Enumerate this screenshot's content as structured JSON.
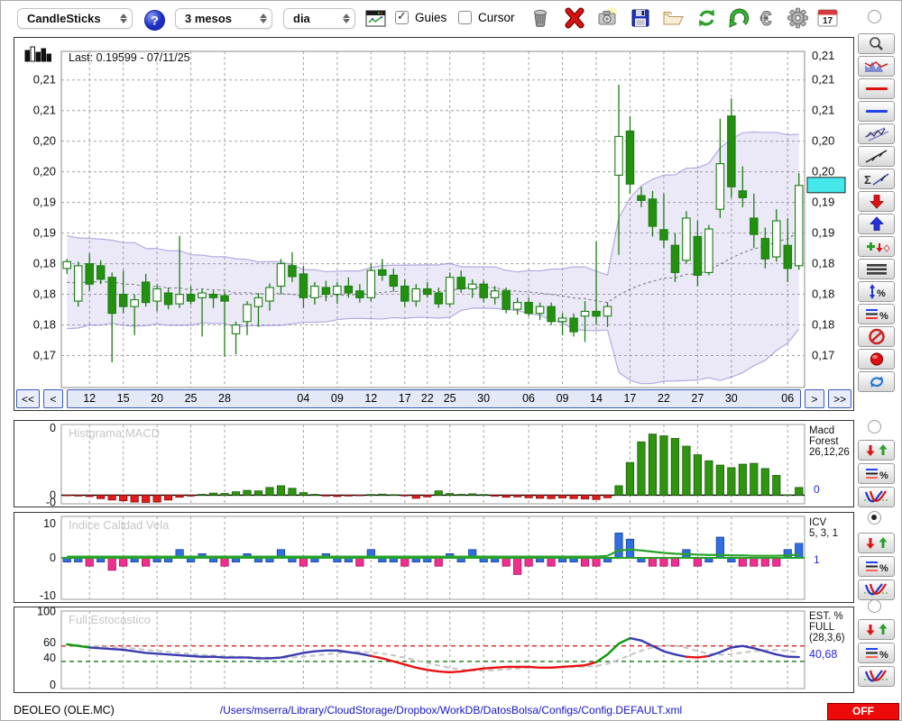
{
  "toolbar": {
    "chart_type": "CandleSticks",
    "period": "3 mesos",
    "interval": "dia",
    "guies_label": "Guies",
    "guies_checked": true,
    "cursor_label": "Cursor",
    "cursor_checked": false,
    "help_glyph": "?",
    "euro_glyph": "€",
    "calendar_day": "17",
    "icons": [
      "chart-window-icon",
      "trash-icon",
      "delete-x-icon",
      "camera-icon",
      "save-floppy-icon",
      "open-folder-icon",
      "refresh-icon",
      "undo-icon",
      "euro-icon",
      "gear-icon",
      "calendar-icon"
    ]
  },
  "sidebar": {
    "top_radio": false,
    "macd_radio": false,
    "icv_radio": true,
    "est_radio": false,
    "tools": [
      "zoom",
      "indicator-overlay",
      "red-hline",
      "blue-hline",
      "channel",
      "trendline",
      "sum-trendline",
      "sell-arrow",
      "buy-arrow",
      "add-signal",
      "align-lines",
      "range-percent",
      "levels-percent",
      "disable",
      "record",
      "sync"
    ]
  },
  "main_chart": {
    "last_label": "Last: 0.19599 - 07/11/25",
    "price_badge": "0,20",
    "nav": {
      "first": "<<",
      "prev": "<",
      "next": ">",
      "last": ">>"
    }
  },
  "statusbar": {
    "symbol": "DEOLEO (OLE.MC)",
    "path": "/Users/mserra/Library/CloudStorage/Dropbox/WorkDB/DatosBolsa/Configs/Config.DEFAULT.xml",
    "off_label": "OFF"
  },
  "chart_data": [
    {
      "type": "candlestick",
      "symbol": "DEOLEO (OLE.MC)",
      "last_price": 0.19599,
      "last_date": "07/11/25",
      "ylim": [
        0.1663,
        0.2157
      ],
      "y_ticks": [
        {
          "l": "0,21",
          "v": 0.2115
        },
        {
          "l": "0,21",
          "v": 0.207
        },
        {
          "l": "0,20",
          "v": 0.2025
        },
        {
          "l": "0,20",
          "v": 0.198
        },
        {
          "l": "0,19",
          "v": 0.1935
        },
        {
          "l": "0,19",
          "v": 0.189
        },
        {
          "l": "0,18",
          "v": 0.1845
        },
        {
          "l": "0,18",
          "v": 0.18
        },
        {
          "l": "0,18",
          "v": 0.1755
        },
        {
          "l": "0,17",
          "v": 0.171
        }
      ],
      "right_extra_label": "0,21",
      "x_ticks": [
        {
          "l": "12",
          "i": 2
        },
        {
          "l": "15",
          "i": 5
        },
        {
          "l": "20",
          "i": 8
        },
        {
          "l": "25",
          "i": 11
        },
        {
          "l": "28",
          "i": 14
        },
        {
          "l": "04",
          "i": 21
        },
        {
          "l": "09",
          "i": 24
        },
        {
          "l": "12",
          "i": 27
        },
        {
          "l": "17",
          "i": 30
        },
        {
          "l": "22",
          "i": 32
        },
        {
          "l": "25",
          "i": 34
        },
        {
          "l": "30",
          "i": 37
        },
        {
          "l": "06",
          "i": 41
        },
        {
          "l": "09",
          "i": 44
        },
        {
          "l": "14",
          "i": 47
        },
        {
          "l": "17",
          "i": 50
        },
        {
          "l": "22",
          "i": 53
        },
        {
          "l": "27",
          "i": 56
        },
        {
          "l": "30",
          "i": 59
        },
        {
          "l": "06",
          "i": 64
        }
      ],
      "bollinger": {
        "window": 20,
        "mult": 2
      },
      "warmup_closes": [
        0.181,
        0.1862,
        0.1778,
        0.1835,
        0.1758,
        0.1852,
        0.18,
        0.187,
        0.1782,
        0.184,
        0.1795,
        0.185,
        0.1772,
        0.1828,
        0.179,
        0.1845,
        0.1768,
        0.1832,
        0.1802,
        0.1846
      ],
      "candles": [
        [
          0.1838,
          0.1852,
          0.183,
          0.1848
        ],
        [
          0.179,
          0.1848,
          0.1782,
          0.1842
        ],
        [
          0.1845,
          0.186,
          0.1805,
          0.1815
        ],
        [
          0.1842,
          0.185,
          0.1815,
          0.1822
        ],
        [
          0.1825,
          0.1832,
          0.17,
          0.1772
        ],
        [
          0.18,
          0.1835,
          0.1772,
          0.1782
        ],
        [
          0.1782,
          0.18,
          0.174,
          0.1792
        ],
        [
          0.1818,
          0.183,
          0.1782,
          0.1788
        ],
        [
          0.179,
          0.1815,
          0.1775,
          0.1808
        ],
        [
          0.1802,
          0.181,
          0.1778,
          0.1785
        ],
        [
          0.1786,
          0.1886,
          0.178,
          0.18
        ],
        [
          0.18,
          0.1812,
          0.1785,
          0.179
        ],
        [
          0.1795,
          0.1808,
          0.1738,
          0.1802
        ],
        [
          0.18,
          0.1805,
          0.178,
          0.1795
        ],
        [
          0.1798,
          0.1804,
          0.1708,
          0.179
        ],
        [
          0.1742,
          0.176,
          0.1712,
          0.1755
        ],
        [
          0.176,
          0.179,
          0.174,
          0.1785
        ],
        [
          0.1782,
          0.1802,
          0.1752,
          0.1795
        ],
        [
          0.179,
          0.1816,
          0.1776,
          0.181
        ],
        [
          0.1812,
          0.1852,
          0.18,
          0.1845
        ],
        [
          0.1842,
          0.1862,
          0.1818,
          0.1826
        ],
        [
          0.183,
          0.1842,
          0.178,
          0.1795
        ],
        [
          0.1795,
          0.1818,
          0.1785,
          0.1812
        ],
        [
          0.181,
          0.182,
          0.179,
          0.18
        ],
        [
          0.18,
          0.1818,
          0.1786,
          0.1812
        ],
        [
          0.1812,
          0.1825,
          0.1795,
          0.1802
        ],
        [
          0.1805,
          0.1815,
          0.1788,
          0.1795
        ],
        [
          0.1795,
          0.1845,
          0.179,
          0.1835
        ],
        [
          0.1836,
          0.1852,
          0.182,
          0.1828
        ],
        [
          0.1828,
          0.1838,
          0.1804,
          0.1812
        ],
        [
          0.1812,
          0.1822,
          0.1782,
          0.179
        ],
        [
          0.179,
          0.1815,
          0.1782,
          0.1808
        ],
        [
          0.1808,
          0.1818,
          0.1795,
          0.18
        ],
        [
          0.1802,
          0.181,
          0.178,
          0.1786
        ],
        [
          0.1786,
          0.1832,
          0.1782,
          0.1825
        ],
        [
          0.1825,
          0.1835,
          0.1802,
          0.1808
        ],
        [
          0.1808,
          0.1822,
          0.1795,
          0.1815
        ],
        [
          0.1815,
          0.182,
          0.1788,
          0.1795
        ],
        [
          0.1795,
          0.1812,
          0.1785,
          0.1805
        ],
        [
          0.1805,
          0.181,
          0.1772,
          0.1778
        ],
        [
          0.1778,
          0.1795,
          0.177,
          0.1788
        ],
        [
          0.1788,
          0.1795,
          0.1768,
          0.1772
        ],
        [
          0.1772,
          0.1788,
          0.1762,
          0.1782
        ],
        [
          0.1782,
          0.1788,
          0.1755,
          0.176
        ],
        [
          0.176,
          0.1772,
          0.174,
          0.1765
        ],
        [
          0.1765,
          0.1772,
          0.1738,
          0.1745
        ],
        [
          0.1768,
          0.179,
          0.173,
          0.1775
        ],
        [
          0.1775,
          0.1878,
          0.1755,
          0.1768
        ],
        [
          0.1768,
          0.1788,
          0.1752,
          0.1782
        ],
        [
          0.1975,
          0.2108,
          0.1858,
          0.2032
        ],
        [
          0.204,
          0.2062,
          0.1948,
          0.1962
        ],
        [
          0.1945,
          0.1958,
          0.1928,
          0.1938
        ],
        [
          0.194,
          0.1952,
          0.1885,
          0.19
        ],
        [
          0.1895,
          0.1948,
          0.1868,
          0.188
        ],
        [
          0.1872,
          0.189,
          0.1818,
          0.1832
        ],
        [
          0.185,
          0.1922,
          0.1845,
          0.1912
        ],
        [
          0.1885,
          0.1908,
          0.1812,
          0.1828
        ],
        [
          0.1832,
          0.1902,
          0.1828,
          0.1896
        ],
        [
          0.1925,
          0.2058,
          0.1912,
          0.1992
        ],
        [
          0.2062,
          0.2088,
          0.1942,
          0.1958
        ],
        [
          0.1952,
          0.1988,
          0.1928,
          0.1942
        ],
        [
          0.1912,
          0.1948,
          0.1868,
          0.1888
        ],
        [
          0.1882,
          0.1898,
          0.1838,
          0.1852
        ],
        [
          0.1855,
          0.1925,
          0.1848,
          0.1908
        ],
        [
          0.1872,
          0.1912,
          0.1818,
          0.1838
        ],
        [
          0.1842,
          0.1978,
          0.1836,
          0.196
        ]
      ]
    },
    {
      "type": "bar",
      "title": "Histgrama MACD",
      "right_label": [
        "Macd",
        "Forest",
        "26,12,26"
      ],
      "current": "0",
      "y_labels": [
        "0",
        "0",
        "-0"
      ],
      "ylim": [
        -0.5,
        3.9
      ],
      "values": [
        -0.03,
        -0.05,
        -0.08,
        -0.2,
        -0.28,
        -0.33,
        -0.4,
        -0.42,
        -0.4,
        -0.28,
        -0.12,
        -0.05,
        0.05,
        0.12,
        0.1,
        0.2,
        0.28,
        0.25,
        0.45,
        0.55,
        0.4,
        0.15,
        0.05,
        -0.05,
        -0.08,
        -0.05,
        -0.03,
        0.04,
        0.06,
        0.03,
        -0.04,
        -0.18,
        -0.1,
        0.25,
        0.1,
        0.05,
        0.08,
        0.04,
        -0.06,
        -0.12,
        -0.1,
        -0.15,
        -0.18,
        -0.2,
        -0.16,
        -0.2,
        -0.22,
        -0.25,
        -0.15,
        0.55,
        1.9,
        3.1,
        3.55,
        3.45,
        3.3,
        2.85,
        2.35,
        2.0,
        1.75,
        1.6,
        1.8,
        1.85,
        1.55,
        1.15,
        0.02,
        0.45
      ]
    },
    {
      "type": "bar+line",
      "title": "Indice Calidad Vela",
      "right_label": [
        "ICV",
        "5, 3, 1"
      ],
      "current": "1",
      "y_labels": [
        "10",
        "0",
        "-10"
      ],
      "ylim": [
        -10,
        10
      ],
      "values": [
        -1,
        -1,
        -2,
        -1,
        -3,
        -2,
        -1,
        -2,
        -1,
        -1,
        2,
        -1,
        1,
        -1,
        -2,
        -1,
        1,
        -1,
        -1,
        2,
        -1,
        -2,
        -1,
        1,
        -1,
        -1,
        -2,
        2,
        -1,
        -1,
        -2,
        -1,
        -1,
        -2,
        1,
        -1,
        2,
        -1,
        -1,
        -2,
        -4,
        -2,
        -1,
        -2,
        -1,
        -1,
        -2,
        -2,
        -1,
        6,
        4.5,
        -1,
        -2,
        -2,
        -2,
        2,
        -2,
        -1,
        5,
        -1,
        -2,
        -2,
        -2,
        -2,
        2,
        3.5
      ],
      "line": [
        0.3,
        0.3,
        0.3,
        0.3,
        0.3,
        0.3,
        0.3,
        0.3,
        0.3,
        0.3,
        0.3,
        0.3,
        0.3,
        0.3,
        0.3,
        0.3,
        0.3,
        0.3,
        0.3,
        0.3,
        0.3,
        0.3,
        0.3,
        0.3,
        0.3,
        0.3,
        0.3,
        0.3,
        0.3,
        0.3,
        0.3,
        0.3,
        0.3,
        0.3,
        0.3,
        0.3,
        0.3,
        0.3,
        0.3,
        0.3,
        0.3,
        0.3,
        0.3,
        0.3,
        0.3,
        0.3,
        0.3,
        0.3,
        0.5,
        1.8,
        2.0,
        1.8,
        1.5,
        1.2,
        1.0,
        0.9,
        0.8,
        0.7,
        0.7,
        0.6,
        0.6,
        0.5,
        0.5,
        0.5,
        0.6,
        0.8
      ]
    },
    {
      "type": "line",
      "title": "Full Estocastico",
      "right_label": [
        "EST. %",
        "FULL",
        "(28,3,6)"
      ],
      "current": "40,68",
      "ylim": [
        0,
        100
      ],
      "y_ticks": [
        {
          "l": "100",
          "v": 100
        },
        {
          "l": "60",
          "v": 60
        },
        {
          "l": "40",
          "v": 40
        },
        {
          "l": "0",
          "v": 0
        }
      ],
      "upper_band": 55,
      "lower_band": 35,
      "k": [
        57,
        55,
        53,
        52,
        51,
        50,
        48,
        46,
        45,
        44,
        43,
        42,
        41,
        41,
        40,
        40,
        40,
        39,
        39,
        40,
        43,
        46,
        48,
        49,
        49,
        47,
        45,
        42,
        39,
        35,
        31,
        27,
        24,
        22,
        21,
        22,
        24,
        26,
        27,
        28,
        28,
        28,
        27,
        27,
        28,
        29,
        30,
        34,
        44,
        58,
        65,
        62,
        55,
        48,
        44,
        41,
        40,
        42,
        47,
        53,
        55,
        52,
        48,
        44,
        41,
        40.68
      ],
      "segments": [
        {
          "to": 2,
          "c": "#0f9b0f"
        },
        {
          "to": 27,
          "c": "#3b3bb0"
        },
        {
          "to": 47,
          "c": "#ea1111"
        },
        {
          "to": 50,
          "c": "#0f9b0f"
        },
        {
          "to": 55,
          "c": "#3b3bb0"
        },
        {
          "to": 57,
          "c": "#ea1111"
        },
        {
          "to": 65,
          "c": "#3b3bb0"
        }
      ]
    }
  ],
  "colors": {
    "candle_up_fill": "#ffffff",
    "candle_dn_fill": "#23910f",
    "candle_stroke": "#1b7e10",
    "band_fill": "rgba(128,110,210,0.16)",
    "band_stroke": "rgba(128,110,210,0.55)",
    "macd_pos": "#2f9410",
    "macd_neg": "#e31b1b",
    "icv_blue": "#2f6fe0",
    "icv_magenta": "#ef2f8f",
    "icv_green": "#27a327",
    "badge": "#45e8ea",
    "grid": "#a3a3a3",
    "title_gray": "#c6c6c6",
    "value_blue": "#2525e8"
  }
}
